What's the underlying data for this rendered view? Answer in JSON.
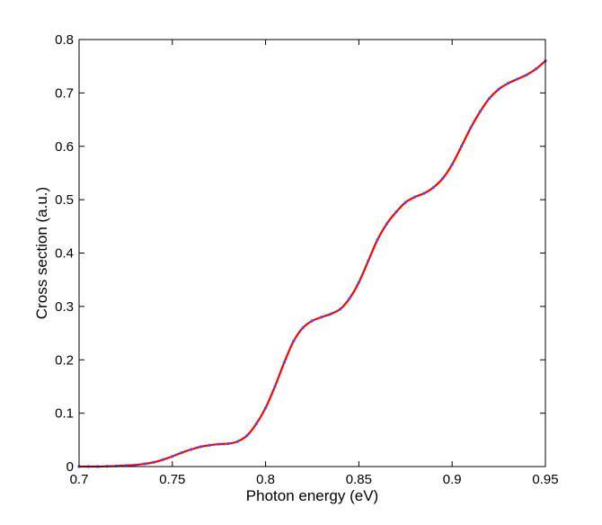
{
  "chart_data": {
    "type": "line",
    "title": "",
    "xlabel": "Photon energy (eV)",
    "ylabel": "Cross section (a.u.)",
    "xlim": [
      0.7,
      0.95
    ],
    "ylim": [
      0,
      0.8
    ],
    "xticks": [
      0.7,
      0.75,
      0.8,
      0.85,
      0.9,
      0.95
    ],
    "xtick_labels": [
      "0.7",
      "0.75",
      "0.8",
      "0.85",
      "0.9",
      "0.95"
    ],
    "yticks": [
      0,
      0.1,
      0.2,
      0.3,
      0.4,
      0.5,
      0.6,
      0.7,
      0.8
    ],
    "ytick_labels": [
      "0",
      "0.1",
      "0.2",
      "0.3",
      "0.4",
      "0.5",
      "0.6",
      "0.7",
      "0.8"
    ],
    "grid": false,
    "legend": "none",
    "series": [
      {
        "style": "solid-line",
        "color": "#ff0000",
        "x": [
          0.7,
          0.705,
          0.71,
          0.715,
          0.72,
          0.725,
          0.73,
          0.735,
          0.74,
          0.745,
          0.75,
          0.755,
          0.76,
          0.765,
          0.77,
          0.775,
          0.78,
          0.785,
          0.79,
          0.795,
          0.8,
          0.805,
          0.81,
          0.815,
          0.82,
          0.825,
          0.83,
          0.835,
          0.84,
          0.845,
          0.85,
          0.855,
          0.86,
          0.865,
          0.87,
          0.875,
          0.88,
          0.885,
          0.89,
          0.895,
          0.9,
          0.905,
          0.91,
          0.915,
          0.92,
          0.925,
          0.93,
          0.935,
          0.94,
          0.945,
          0.95
        ],
        "y": [
          0.0,
          0.0,
          0.0,
          0.0005,
          0.001,
          0.002,
          0.003,
          0.005,
          0.008,
          0.013,
          0.019,
          0.026,
          0.032,
          0.037,
          0.04,
          0.042,
          0.043,
          0.047,
          0.058,
          0.08,
          0.11,
          0.15,
          0.195,
          0.235,
          0.26,
          0.273,
          0.28,
          0.286,
          0.295,
          0.315,
          0.345,
          0.385,
          0.425,
          0.455,
          0.477,
          0.495,
          0.505,
          0.512,
          0.523,
          0.54,
          0.566,
          0.6,
          0.635,
          0.665,
          0.69,
          0.707,
          0.718,
          0.726,
          0.734,
          0.745,
          0.76
        ]
      },
      {
        "style": "dotted-markers",
        "color": "#4a4aff",
        "x": [
          0.7,
          0.705,
          0.71,
          0.715,
          0.72,
          0.725,
          0.73,
          0.735,
          0.74,
          0.745,
          0.75,
          0.755,
          0.76,
          0.765,
          0.77,
          0.775,
          0.78,
          0.785,
          0.79,
          0.795,
          0.8,
          0.805,
          0.81,
          0.815,
          0.82,
          0.825,
          0.83,
          0.835,
          0.84,
          0.845,
          0.85,
          0.855,
          0.86,
          0.865,
          0.87,
          0.875,
          0.88,
          0.885,
          0.89,
          0.895,
          0.9,
          0.905,
          0.91,
          0.915,
          0.92,
          0.925,
          0.93,
          0.935,
          0.94,
          0.945,
          0.95
        ],
        "y": [
          0.0,
          0.0,
          0.0,
          0.0005,
          0.001,
          0.002,
          0.003,
          0.005,
          0.008,
          0.013,
          0.019,
          0.026,
          0.032,
          0.037,
          0.04,
          0.042,
          0.043,
          0.047,
          0.058,
          0.08,
          0.11,
          0.15,
          0.195,
          0.235,
          0.26,
          0.273,
          0.28,
          0.286,
          0.295,
          0.315,
          0.345,
          0.385,
          0.425,
          0.455,
          0.477,
          0.495,
          0.505,
          0.512,
          0.523,
          0.54,
          0.566,
          0.6,
          0.635,
          0.665,
          0.69,
          0.707,
          0.718,
          0.726,
          0.734,
          0.745,
          0.76
        ]
      }
    ]
  }
}
